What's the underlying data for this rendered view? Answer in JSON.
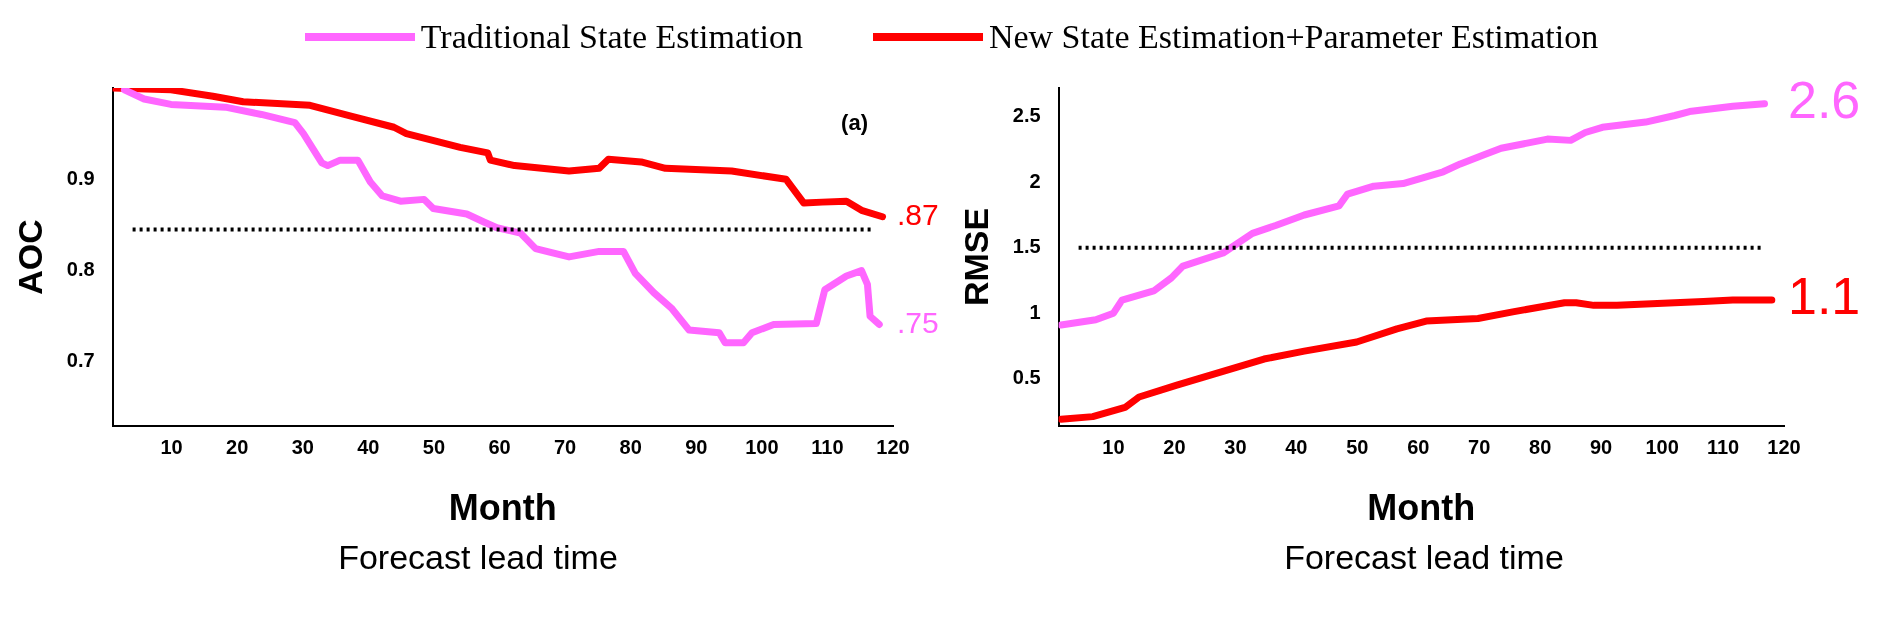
{
  "chart_data": [
    {
      "type": "line",
      "title": "(a)",
      "xlabel": "Month",
      "ylabel": "AOC",
      "legend": "top",
      "marker": "none",
      "line_style": "solid",
      "grid": false,
      "xlim": [
        1,
        120
      ],
      "ylim": [
        0.63,
        1.0
      ],
      "xticks": [
        10,
        20,
        30,
        40,
        50,
        60,
        70,
        80,
        90,
        100,
        110,
        120
      ],
      "yticks": [
        0.7,
        0.8,
        0.9
      ],
      "ref_lines": [
        {
          "axis": "y",
          "value": 0.845,
          "color": "#000000",
          "line_style": "dotted"
        }
      ],
      "annotations": [
        ".75",
        ".87",
        "Forecast lead time"
      ],
      "series": [
        {
          "name": "Traditional State Estimation",
          "color": "#ff66ff",
          "x": [
            2.8,
            5.8,
            9.9,
            18.2,
            23.7,
            28.8,
            30.1,
            32.9,
            33.8,
            35.7,
            38.4,
            40.3,
            42.1,
            44.9,
            48.5,
            49.9,
            55,
            57.7,
            59.6,
            63.2,
            65.5,
            70.6,
            75.2,
            78.9,
            80.7,
            83.5,
            86.2,
            88.9,
            93.5,
            94.4,
            97.2,
            98.5,
            101.8,
            108.3,
            109.6,
            112.9,
            115.2,
            116.1,
            116.5,
            117.9
          ],
          "values": [
            0.998,
            0.988,
            0.982,
            0.979,
            0.971,
            0.962,
            0.95,
            0.918,
            0.915,
            0.921,
            0.921,
            0.897,
            0.882,
            0.876,
            0.878,
            0.868,
            0.862,
            0.853,
            0.847,
            0.841,
            0.824,
            0.815,
            0.821,
            0.821,
            0.797,
            0.776,
            0.759,
            0.735,
            0.732,
            0.721,
            0.721,
            0.732,
            0.741,
            0.742,
            0.779,
            0.794,
            0.8,
            0.785,
            0.75,
            0.741
          ]
        },
        {
          "name": "New State Estimation+Parameter Estimation",
          "color": "#ff0000",
          "x": [
            1,
            9.9,
            16.3,
            20.9,
            31.1,
            37.5,
            43.9,
            45.8,
            54,
            58.2,
            58.6,
            62.3,
            70.6,
            75.2,
            76.6,
            81.6,
            85.3,
            95.4,
            103.7,
            106.4,
            109.2,
            112.9,
            115.2,
            118.4
          ],
          "values": [
            1.0,
            0.998,
            0.991,
            0.985,
            0.981,
            0.969,
            0.957,
            0.95,
            0.935,
            0.929,
            0.921,
            0.915,
            0.909,
            0.912,
            0.922,
            0.919,
            0.912,
            0.909,
            0.9,
            0.874,
            0.875,
            0.876,
            0.866,
            0.859
          ]
        }
      ]
    },
    {
      "type": "line",
      "xlabel": "Month",
      "ylabel": "RMSE",
      "marker": "none",
      "line_style": "solid",
      "grid": false,
      "xlim": [
        1,
        120
      ],
      "ylim": [
        0.14,
        2.72
      ],
      "xticks": [
        10,
        20,
        30,
        40,
        50,
        60,
        70,
        80,
        90,
        100,
        110,
        120
      ],
      "yticks": [
        0.5,
        1,
        1.5,
        2,
        2.5
      ],
      "ref_lines": [
        {
          "axis": "y",
          "value": 1.5,
          "color": "#000000",
          "line_style": "dotted"
        }
      ],
      "annotations": [
        "2.6",
        "1.1",
        "Forecast lead time"
      ],
      "series": [
        {
          "color": "#ff66ff",
          "x": [
            1.4,
            7.1,
            10,
            11.4,
            16.6,
            19.5,
            21.4,
            28,
            32.8,
            36.6,
            41.3,
            47,
            48.4,
            52.7,
            57.5,
            64.1,
            66.9,
            70.8,
            73.6,
            81.2,
            85,
            87.4,
            90.2,
            97.3,
            102.1,
            104.5,
            111.6,
            116.8
          ],
          "values": [
            0.91,
            0.95,
            1.0,
            1.1,
            1.17,
            1.27,
            1.36,
            1.46,
            1.61,
            1.67,
            1.75,
            1.82,
            1.91,
            1.97,
            1.99,
            2.08,
            2.14,
            2.21,
            2.26,
            2.33,
            2.32,
            2.38,
            2.42,
            2.46,
            2.51,
            2.54,
            2.58,
            2.6
          ]
        },
        {
          "color": "#ff0000",
          "x": [
            1.4,
            6.6,
            11.9,
            14.2,
            20.4,
            34.7,
            41.3,
            49.9,
            56.5,
            61.3,
            69.8,
            75.5,
            84,
            85.9,
            88.8,
            92.6,
            106.8,
            111.6,
            118
          ],
          "values": [
            0.19,
            0.21,
            0.28,
            0.36,
            0.45,
            0.65,
            0.71,
            0.78,
            0.88,
            0.94,
            0.96,
            1.01,
            1.08,
            1.08,
            1.06,
            1.06,
            1.09,
            1.1,
            1.1
          ]
        }
      ]
    }
  ]
}
